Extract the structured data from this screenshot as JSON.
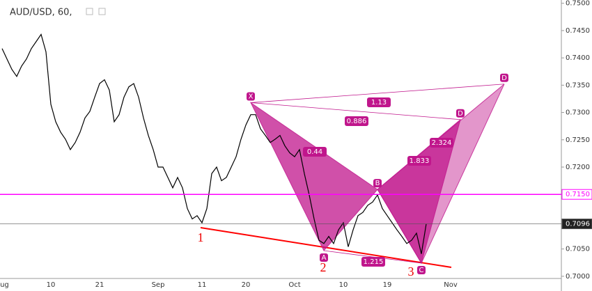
{
  "chart_data": {
    "type": "line",
    "title": "AUD/USD, 60,",
    "color": "#000000",
    "categories": [
      "Aug",
      null,
      null,
      null,
      null,
      null,
      null,
      null,
      null,
      null,
      "10",
      null,
      null,
      null,
      null,
      null,
      null,
      null,
      null,
      null,
      "21",
      null,
      null,
      null,
      null,
      null,
      null,
      null,
      null,
      null,
      null,
      null,
      "Sep",
      null,
      null,
      null,
      null,
      null,
      null,
      null,
      null,
      "11",
      null,
      null,
      null,
      null,
      null,
      null,
      null,
      null,
      "20",
      null,
      null,
      null,
      null,
      null,
      null,
      null,
      null,
      null,
      "Oct",
      null,
      null,
      null,
      null,
      null,
      null,
      null,
      null,
      null,
      "10",
      null,
      null,
      null,
      null,
      null,
      null,
      null,
      null,
      "19",
      null,
      null,
      null,
      null,
      null,
      null,
      null,
      null,
      null,
      null,
      null,
      null,
      "Nov",
      null,
      null,
      null,
      null,
      null,
      null,
      null,
      null,
      null,
      null,
      null,
      null,
      null,
      null,
      null,
      null,
      null,
      null,
      null,
      null,
      null,
      null
    ],
    "values": [
      0.7417,
      0.7398,
      0.7379,
      0.7366,
      0.7385,
      0.7398,
      0.7417,
      0.743,
      0.7443,
      0.7411,
      0.7315,
      0.7283,
      0.7264,
      0.7251,
      0.7232,
      0.7245,
      0.7264,
      0.729,
      0.7302,
      0.7328,
      0.7353,
      0.736,
      0.7341,
      0.7283,
      0.7296,
      0.7328,
      0.7347,
      0.7353,
      0.7328,
      0.729,
      0.7258,
      0.7232,
      0.72,
      0.72,
      0.7181,
      0.7162,
      0.7181,
      0.7162,
      0.7124,
      0.7105,
      0.7111,
      0.7098,
      0.7124,
      0.7188,
      0.72,
      0.7175,
      0.7181,
      0.72,
      0.7219,
      0.7251,
      0.7277,
      0.7296,
      0.7296,
      0.727,
      0.7258,
      0.7245,
      0.7251,
      0.7258,
      0.7239,
      0.7226,
      0.7219,
      0.7232,
      0.7188,
      0.7149,
      0.7105,
      0.7066,
      0.706,
      0.7073,
      0.706,
      0.7085,
      0.7098,
      0.7054,
      0.7085,
      0.7111,
      0.7117,
      0.713,
      0.7136,
      0.7149,
      0.7124,
      0.7111,
      0.7098,
      0.7085,
      0.7073,
      0.706,
      0.7066,
      0.7079,
      0.7041,
      0.7096,
      null,
      null,
      null,
      null,
      null,
      null,
      null,
      null,
      null,
      null,
      null,
      null,
      null,
      null,
      null,
      null,
      null,
      null,
      null,
      null,
      null,
      null,
      null,
      null,
      null,
      null,
      null
    ],
    "ylim": [
      0.6996,
      0.7506
    ],
    "yticks": [
      {
        "value": 0.7,
        "label": "0.7000"
      },
      {
        "value": 0.705,
        "label": "0.7050"
      },
      {
        "value": 0.71,
        "label": "0.7100"
      },
      {
        "value": 0.715,
        "label": "0.7150"
      },
      {
        "value": 0.72,
        "label": "0.7200"
      },
      {
        "value": 0.725,
        "label": "0.7250"
      },
      {
        "value": 0.73,
        "label": "0.7300"
      },
      {
        "value": 0.735,
        "label": "0.7350"
      },
      {
        "value": 0.74,
        "label": "0.7400"
      },
      {
        "value": 0.745,
        "label": "0.7450"
      },
      {
        "value": 0.75,
        "label": "0.7500"
      }
    ],
    "price_lines": [
      {
        "value": 0.715,
        "label": "0.7150",
        "color": "#ff00ff"
      },
      {
        "value": 0.7096,
        "label": "0.7096",
        "color": "#555555"
      }
    ],
    "pattern": {
      "color": "#c0168c",
      "points": [
        {
          "label": "X",
          "x": 51,
          "value": 0.7318
        },
        {
          "label": "A",
          "x": 66,
          "value": 0.7047
        },
        {
          "label": "B",
          "x": 77,
          "value": 0.7159
        },
        {
          "label": "C",
          "x": 86,
          "value": 0.7024
        },
        {
          "label": "D",
          "x": 94,
          "value": 0.7287
        },
        {
          "label": "D",
          "x": 103,
          "value": 0.7352
        }
      ],
      "ratios": [
        0.44,
        1.833,
        2.324,
        0.886,
        1.13,
        1.215
      ]
    },
    "waves": [
      "1",
      "2",
      "3"
    ]
  }
}
